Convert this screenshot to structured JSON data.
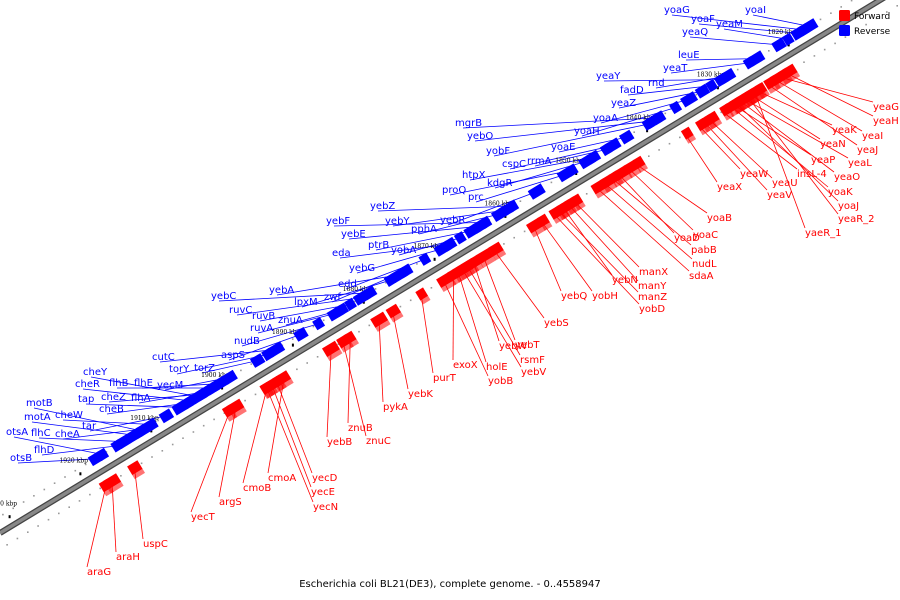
{
  "title": "Escherichia coli BL21(DE3), complete genome. - 0..4558947",
  "colors": {
    "forward": "#ff0000",
    "reverse": "#0000ff",
    "axis": "#888888"
  },
  "legend": [
    {
      "label": "Forward",
      "color": "#ff0000"
    },
    {
      "label": "Reverse",
      "color": "#0000ff"
    }
  ],
  "ticks": [
    {
      "label": "1820 kbp",
      "kbp": 1820
    },
    {
      "label": "1830 kbp",
      "kbp": 1830
    },
    {
      "label": "1840 kbp",
      "kbp": 1840
    },
    {
      "label": "1850 kbp",
      "kbp": 1850
    },
    {
      "label": "1860 kbp",
      "kbp": 1860
    },
    {
      "label": "1870 kbp",
      "kbp": 1870
    },
    {
      "label": "1880 kbp",
      "kbp": 1880
    },
    {
      "label": "1890 kbp",
      "kbp": 1890
    },
    {
      "label": "1900 kbp",
      "kbp": 1900
    },
    {
      "label": "1910 kbp",
      "kbp": 1910
    },
    {
      "label": "1920 kbp",
      "kbp": 1920
    },
    {
      "label": "1930 kbp",
      "kbp": 1930
    }
  ],
  "reverse_genes": [
    {
      "name": "yoaG",
      "kbp": 1817.5
    },
    {
      "name": "yoaF",
      "kbp": 1818.3
    },
    {
      "name": "yoaI",
      "kbp": 1816.7
    },
    {
      "name": "yeaM",
      "kbp": 1819.7
    },
    {
      "name": "yeaQ",
      "kbp": 1821.0
    },
    {
      "name": "leuE",
      "kbp": 1824.2
    },
    {
      "name": "yeaT",
      "kbp": 1825.2
    },
    {
      "name": "yeaY",
      "kbp": 1829.1
    },
    {
      "name": "rnd",
      "kbp": 1828.3
    },
    {
      "name": "fadD",
      "kbp": 1830.5
    },
    {
      "name": "yeaZ",
      "kbp": 1831.8
    },
    {
      "name": "yoaA",
      "kbp": 1833.7
    },
    {
      "name": "yoaH",
      "kbp": 1835.6
    },
    {
      "name": "mgrB",
      "kbp": 1838.0
    },
    {
      "name": "yebO",
      "kbp": 1838.7
    },
    {
      "name": "yobF",
      "kbp": 1839.5
    },
    {
      "name": "yoaE",
      "kbp": 1842.5
    },
    {
      "name": "cspC",
      "kbp": 1844.5
    },
    {
      "name": "rrmA",
      "kbp": 1845.4
    },
    {
      "name": "htpX",
      "kbp": 1847.2
    },
    {
      "name": "kdgR",
      "kbp": 1848.1
    },
    {
      "name": "proQ",
      "kbp": 1850.2
    },
    {
      "name": "prc",
      "kbp": 1851.3
    },
    {
      "name": "yebR",
      "kbp": 1855.2
    },
    {
      "name": "yebZ",
      "kbp": 1858.6
    },
    {
      "name": "yebY",
      "kbp": 1859.5
    },
    {
      "name": "pphA",
      "kbp": 1860.4
    },
    {
      "name": "yebF",
      "kbp": 1862.4
    },
    {
      "name": "yebE",
      "kbp": 1863.3
    },
    {
      "name": "ptrB",
      "kbp": 1864.3
    },
    {
      "name": "yobA",
      "kbp": 1866.0
    },
    {
      "name": "eda",
      "kbp": 1867.5
    },
    {
      "name": "yebG",
      "kbp": 1868.5
    },
    {
      "name": "edd",
      "kbp": 1871.0
    },
    {
      "name": "zwf",
      "kbp": 1873.7
    },
    {
      "name": "yebA",
      "kbp": 1874.6
    },
    {
      "name": "lpxM",
      "kbp": 1875.9
    },
    {
      "name": "yebC",
      "kbp": 1878.8
    },
    {
      "name": "ruvC",
      "kbp": 1879.9
    },
    {
      "name": "ruvB",
      "kbp": 1881.5
    },
    {
      "name": "znuA",
      "kbp": 1882.8
    },
    {
      "name": "ruvA",
      "kbp": 1883.6
    },
    {
      "name": "nudB",
      "kbp": 1886.0
    },
    {
      "name": "aspS",
      "kbp": 1888.5
    },
    {
      "name": "cutC",
      "kbp": 1892.0
    },
    {
      "name": "torY",
      "kbp": 1893.2
    },
    {
      "name": "torZ",
      "kbp": 1894.6
    },
    {
      "name": "cheY",
      "kbp": 1903.0
    },
    {
      "name": "cheR",
      "kbp": 1904.0
    },
    {
      "name": "flhB",
      "kbp": 1901.0
    },
    {
      "name": "flhE",
      "kbp": 1900.0
    },
    {
      "name": "cheZ",
      "kbp": 1902.5
    },
    {
      "name": "yecM",
      "kbp": 1898.5
    },
    {
      "name": "tap",
      "kbp": 1905.5
    },
    {
      "name": "cheB",
      "kbp": 1904.5
    },
    {
      "name": "flhA",
      "kbp": 1901.8
    },
    {
      "name": "motB",
      "kbp": 1911.0
    },
    {
      "name": "cheW",
      "kbp": 1909.5
    },
    {
      "name": "tar",
      "kbp": 1907.5
    },
    {
      "name": "motA",
      "kbp": 1912.0
    },
    {
      "name": "otsA",
      "kbp": 1916.5
    },
    {
      "name": "flhC",
      "kbp": 1913.5
    },
    {
      "name": "cheA",
      "kbp": 1910.5
    },
    {
      "name": "flhD",
      "kbp": 1914.5
    },
    {
      "name": "otsB",
      "kbp": 1917.5
    }
  ],
  "forward_genes": [
    {
      "name": "yeaG",
      "kbp": 1822.3
    },
    {
      "name": "yeaH",
      "kbp": 1821.5
    },
    {
      "name": "yeaI",
      "kbp": 1823.1
    },
    {
      "name": "yeaK",
      "kbp": 1825.6
    },
    {
      "name": "yeaJ",
      "kbp": 1824.2
    },
    {
      "name": "yeaN",
      "kbp": 1826.6
    },
    {
      "name": "yeaL",
      "kbp": 1827.5
    },
    {
      "name": "yeaP",
      "kbp": 1829.0
    },
    {
      "name": "yeaO",
      "kbp": 1828.1
    },
    {
      "name": "insL-4",
      "kbp": 1830.6
    },
    {
      "name": "yeaU",
      "kbp": 1832.5
    },
    {
      "name": "yoaK",
      "kbp": 1829.4
    },
    {
      "name": "yeaW",
      "kbp": 1834.0
    },
    {
      "name": "yeaV",
      "kbp": 1833.2
    },
    {
      "name": "yoaJ",
      "kbp": 1828.7
    },
    {
      "name": "yeaX",
      "kbp": 1836.0
    },
    {
      "name": "yeaR_2",
      "kbp": 1827.2
    },
    {
      "name": "yaeR_1",
      "kbp": 1826.3
    },
    {
      "name": "yoaB",
      "kbp": 1842.8
    },
    {
      "name": "yoaC",
      "kbp": 1843.9
    },
    {
      "name": "yoaD",
      "kbp": 1845.3
    },
    {
      "name": "pabB",
      "kbp": 1846.2
    },
    {
      "name": "nudL",
      "kbp": 1847.3
    },
    {
      "name": "sdaA",
      "kbp": 1848.4
    },
    {
      "name": "manX",
      "kbp": 1851.6
    },
    {
      "name": "manY",
      "kbp": 1852.4
    },
    {
      "name": "yebN",
      "kbp": 1853.2
    },
    {
      "name": "manZ",
      "kbp": 1853.8
    },
    {
      "name": "yobD",
      "kbp": 1854.5
    },
    {
      "name": "yebQ",
      "kbp": 1857.5
    },
    {
      "name": "yobH",
      "kbp": 1856.3
    },
    {
      "name": "yebS",
      "kbp": 1863.0
    },
    {
      "name": "yebT",
      "kbp": 1864.6
    },
    {
      "name": "yebW",
      "kbp": 1866.0
    },
    {
      "name": "rsmF",
      "kbp": 1866.8
    },
    {
      "name": "yebV",
      "kbp": 1867.5
    },
    {
      "name": "exoX",
      "kbp": 1869.0
    },
    {
      "name": "holE",
      "kbp": 1868.2
    },
    {
      "name": "yobB",
      "kbp": 1870.2
    },
    {
      "name": "purT",
      "kbp": 1873.5
    },
    {
      "name": "yebK",
      "kbp": 1877.5
    },
    {
      "name": "pykA",
      "kbp": 1879.5
    },
    {
      "name": "znuB",
      "kbp": 1883.6
    },
    {
      "name": "znuC",
      "kbp": 1884.5
    },
    {
      "name": "yebB",
      "kbp": 1886.3
    },
    {
      "name": "yecD",
      "kbp": 1893.8
    },
    {
      "name": "cmoA",
      "kbp": 1893.0
    },
    {
      "name": "yecE",
      "kbp": 1894.5
    },
    {
      "name": "cmoB",
      "kbp": 1895.5
    },
    {
      "name": "yecN",
      "kbp": 1895.2
    },
    {
      "name": "argS",
      "kbp": 1899.8
    },
    {
      "name": "yecT",
      "kbp": 1900.8
    },
    {
      "name": "uspC",
      "kbp": 1914.0
    },
    {
      "name": "araH",
      "kbp": 1917.2
    },
    {
      "name": "araG",
      "kbp": 1918.2
    }
  ]
}
